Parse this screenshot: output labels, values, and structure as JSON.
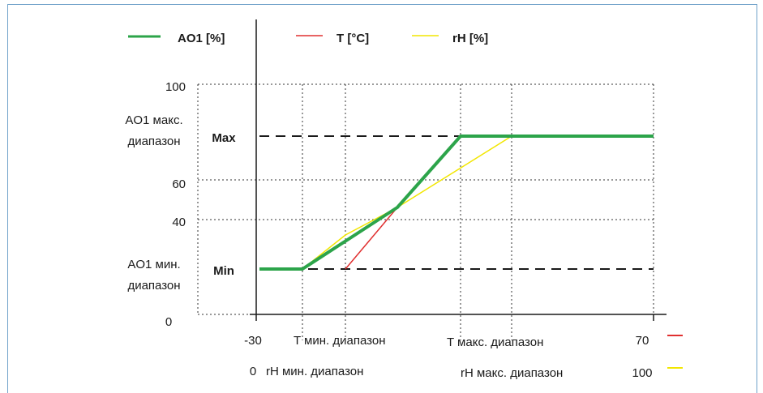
{
  "legend": {
    "ao1": "AO1 [%]",
    "t": "T [°C]",
    "rh": "rH [%]"
  },
  "y_axis": {
    "tick_100": "100",
    "tick_60": "60",
    "tick_40": "40",
    "tick_0": "0",
    "max_range_line1": "AO1 макс.",
    "max_range_line2": "диапазон",
    "min_range_line1": "AO1 мин.",
    "min_range_line2": "диапазон",
    "max_label": "Max",
    "min_label": "Min"
  },
  "x_axis": {
    "t_start": "-30",
    "t_min": "T мин. диапазон",
    "t_max": "T макс. диапазон",
    "t_end": "70",
    "rh_start": "0",
    "rh_min": "rH мин. диапазон",
    "rh_max": "rH макс. диапазон",
    "rh_end": "100"
  },
  "colors": {
    "ao1": "#2ca44a",
    "t": "#e03030",
    "rh": "#f2e600",
    "axis": "#1a1a1a",
    "frame": "#6fa1c9"
  }
}
